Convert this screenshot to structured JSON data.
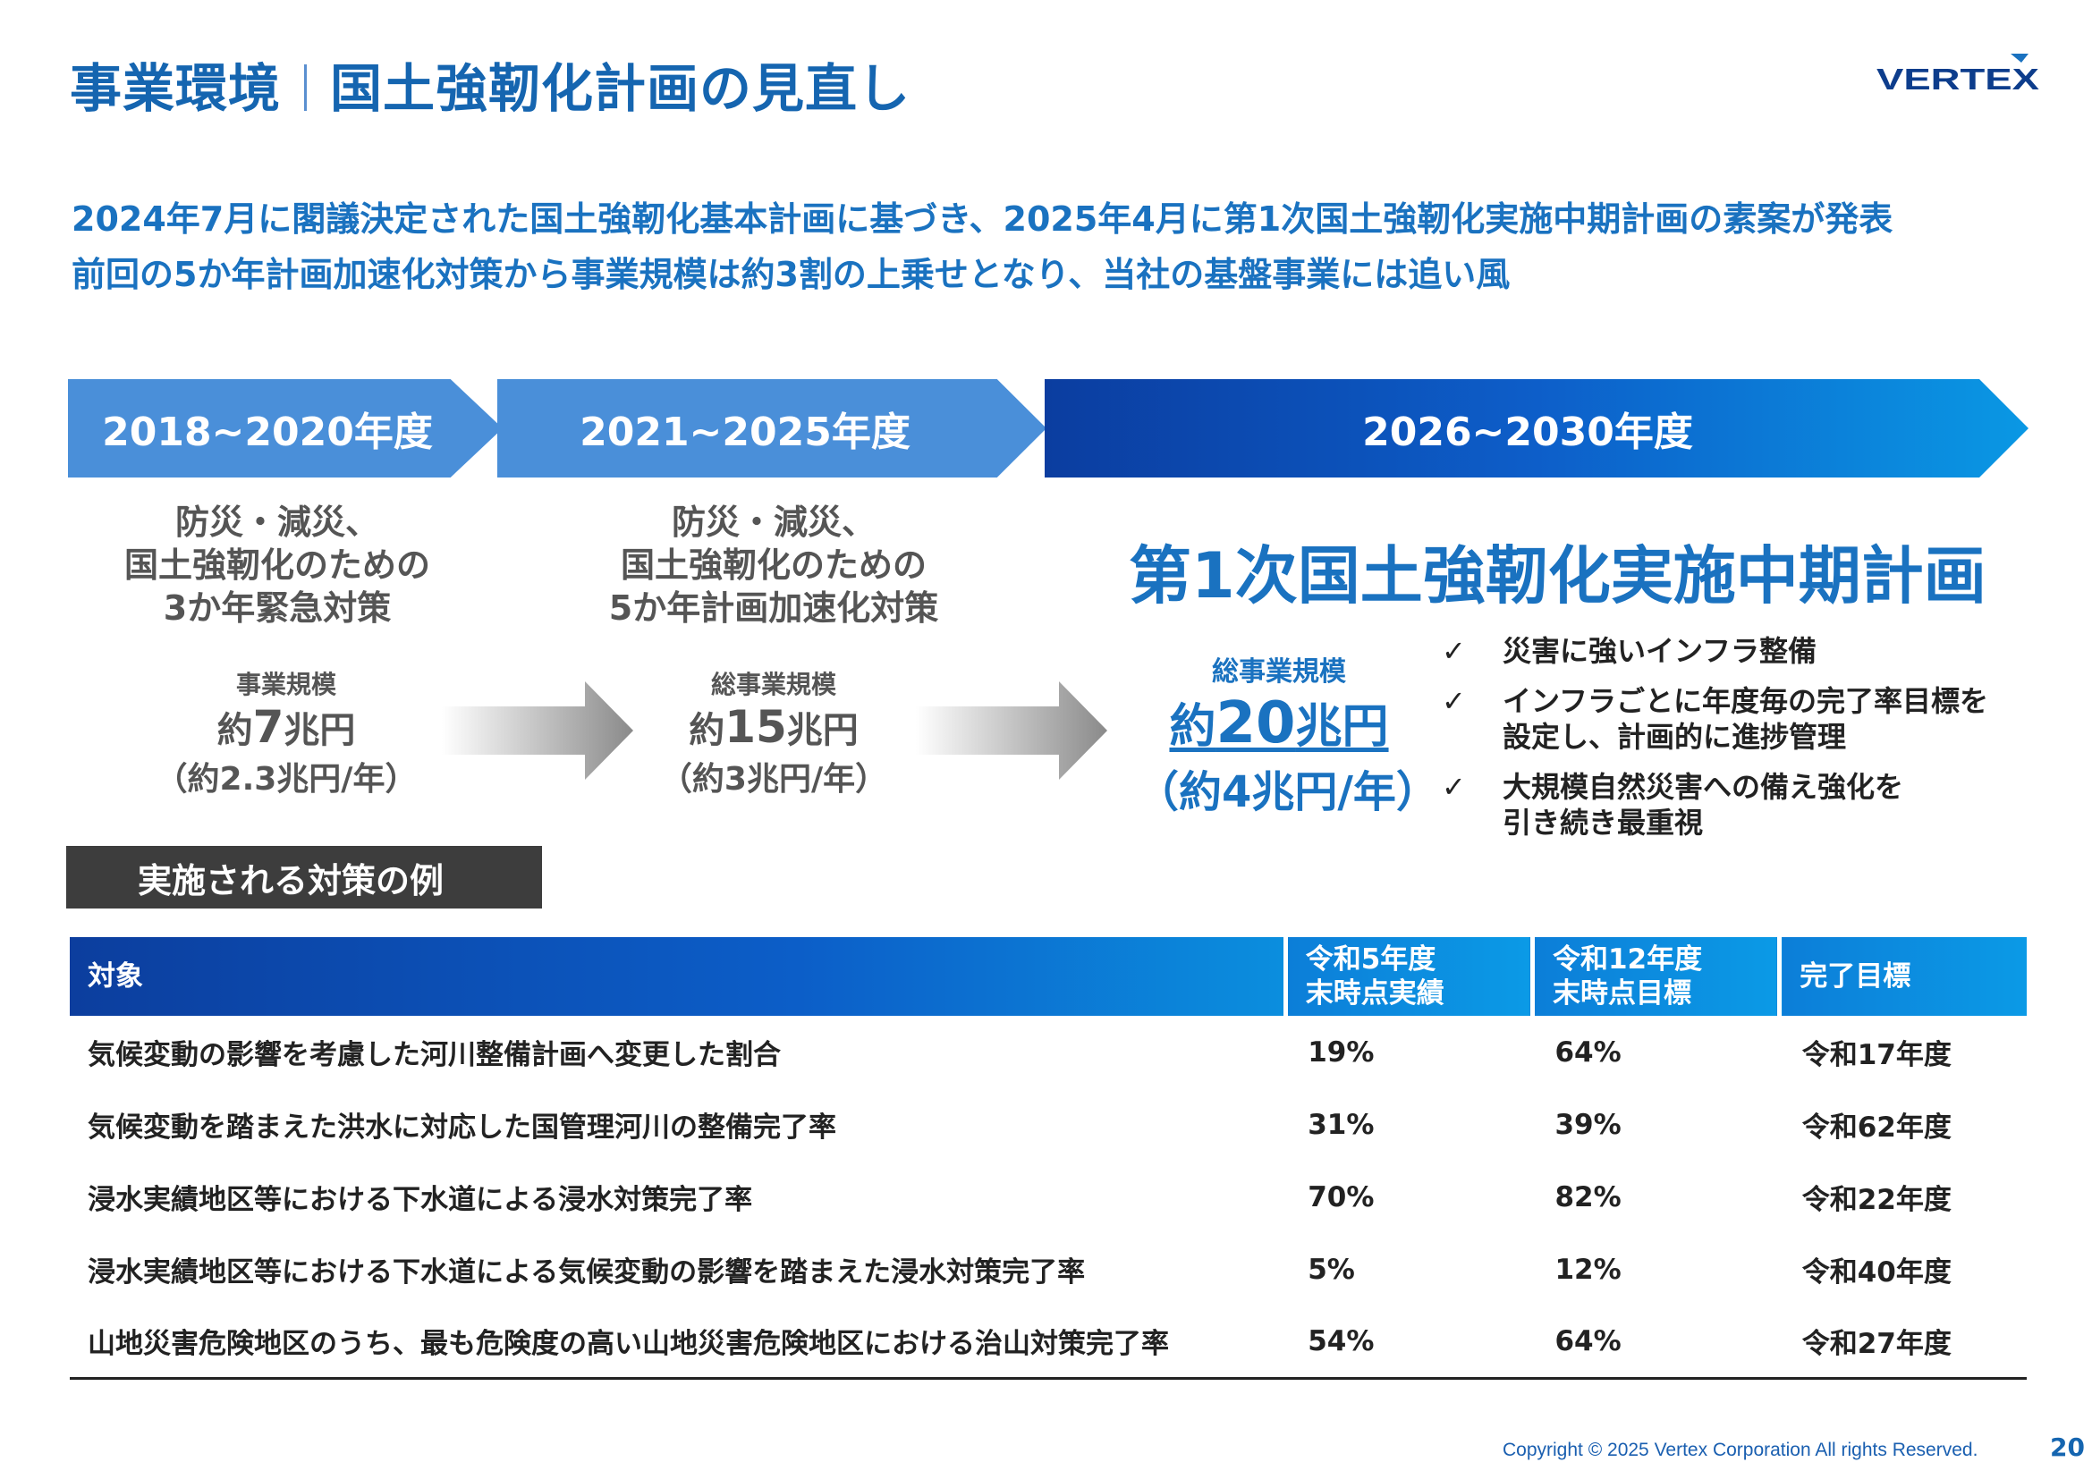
{
  "header": {
    "title_left": "事業環境",
    "title_right": "国土強靭化計画の見直し",
    "logo_text": "VERTEX"
  },
  "lead": {
    "line1": "2024年7月に閣議決定された国土強靭化基本計画に基づき、2025年4月に第1次国土強靭化実施中期計画の素案が発表",
    "line2": "前回の5か年計画加速化対策から事業規模は約3割の上乗せとなり、当社の基盤事業には追い風"
  },
  "timeline": {
    "period1": "2018~2020年度",
    "period2": "2021~2025年度",
    "period3": "2026~2030年度"
  },
  "phase1": {
    "line1": "防災・減災、",
    "line2": "国土強靭化のための",
    "line3": "3か年緊急対策",
    "scale_label": "事業規模",
    "scale_prefix": "約",
    "scale_num": "7",
    "scale_unit": "兆円",
    "per_year": "（約2.3兆円/年）"
  },
  "phase2": {
    "line1": "防災・減災、",
    "line2": "国土強靭化のための",
    "line3": "5か年計画加速化対策",
    "scale_label": "総事業規模",
    "scale_prefix": "約",
    "scale_num": "15",
    "scale_unit": "兆円",
    "per_year": "（約3兆円/年）"
  },
  "phase3": {
    "title": "第1次国土強靭化実施中期計画",
    "scale_label": "総事業規模",
    "scale_prefix": "約",
    "scale_num": "20",
    "scale_unit": "兆円",
    "per_year": "（約4兆円/年）",
    "bullets": [
      {
        "mark": "✓",
        "line1": "災害に強いインフラ整備",
        "line2": ""
      },
      {
        "mark": "✓",
        "line1": "インフラごとに年度毎の完了率目標を",
        "line2": "設定し、計画的に進捗管理"
      },
      {
        "mark": "✓",
        "line1": "大規模自然災害への備え強化を",
        "line2": "引き続き最重視"
      }
    ]
  },
  "measures": {
    "heading": "実施される対策の例",
    "headers": {
      "target": "対象",
      "r5_line1": "令和5年度",
      "r5_line2": "末時点実績",
      "r12_line1": "令和12年度",
      "r12_line2": "末時点目標",
      "goal": "完了目標"
    },
    "rows": [
      {
        "target": "気候変動の影響を考慮した河川整備計画へ変更した割合",
        "r5": "19%",
        "r12": "64%",
        "goal": "令和17年度"
      },
      {
        "target": "気候変動を踏まえた洪水に対応した国管理河川の整備完了率",
        "r5": "31%",
        "r12": "39%",
        "goal": "令和62年度"
      },
      {
        "target": "浸水実績地区等における下水道による浸水対策完了率",
        "r5": "70%",
        "r12": "82%",
        "goal": "令和22年度"
      },
      {
        "target": "浸水実績地区等における下水道による気候変動の影響を踏まえた浸水対策完了率",
        "r5": "5%",
        "r12": "12%",
        "goal": "令和40年度"
      },
      {
        "target": "山地災害危険地区のうち、最も危険度の高い山地災害危険地区における治山対策完了率",
        "r5": "54%",
        "r12": "64%",
        "goal": "令和27年度"
      }
    ]
  },
  "footer": {
    "copyright": "Copyright © 2025 Vertex Corporation All rights Reserved.",
    "page": "20"
  },
  "colors": {
    "brand_blue": "#1a72c0",
    "banner_light": "#4a8fd9",
    "banner_dark": "#0b3da0",
    "banner_accent": "#0a98e4",
    "subheader_bg": "#3d3d3d"
  }
}
